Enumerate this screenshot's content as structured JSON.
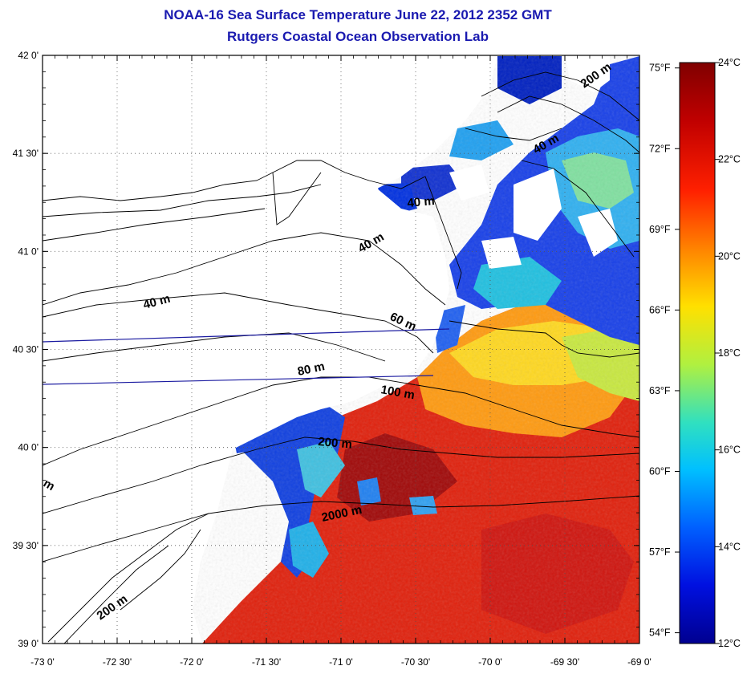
{
  "title": {
    "line1": "NOAA-16 Sea Surface Temperature June 22, 2012 2352 GMT",
    "line2": "Rutgers Coastal Ocean Observation Lab"
  },
  "map": {
    "lon_range": [
      -73.0,
      -69.0
    ],
    "lat_range": [
      39.0,
      42.0
    ],
    "lon_labels": [
      "-73 0'",
      "-72 30'",
      "-72 0'",
      "-71 30'",
      "-71 0'",
      "-70 30'",
      "-70 0'",
      "-69 30'",
      "-69 0'"
    ],
    "lat_labels": [
      "42 0'",
      "41 30'",
      "41 0'",
      "40 30'",
      "40 0'",
      "39 30'",
      "39 0'"
    ],
    "grid": "dotted",
    "land_color": "#ffffff",
    "contour_color": "#000000",
    "transect_color": "#1a1aa0",
    "depth_labels": [
      "200 m",
      "40 m",
      "40 m",
      "40 m",
      "60 m",
      "80 m",
      "100 m",
      "200 m",
      "2000 m",
      "200 m",
      "40 m",
      "m"
    ]
  },
  "colorbar": {
    "celsius_labels": [
      "24°C",
      "22°C",
      "20°C",
      "18°C",
      "16°C",
      "14°C",
      "12°C"
    ],
    "fahrenheit_labels": [
      "75°F",
      "72°F",
      "69°F",
      "66°F",
      "63°F",
      "60°F",
      "57°F",
      "54°F"
    ],
    "range_c": [
      12,
      24
    ],
    "colors": [
      "#7f0000",
      "#ff0000",
      "#ff8000",
      "#ffff00",
      "#80ff80",
      "#00ffff",
      "#0080ff",
      "#0000ff",
      "#00008f"
    ]
  }
}
